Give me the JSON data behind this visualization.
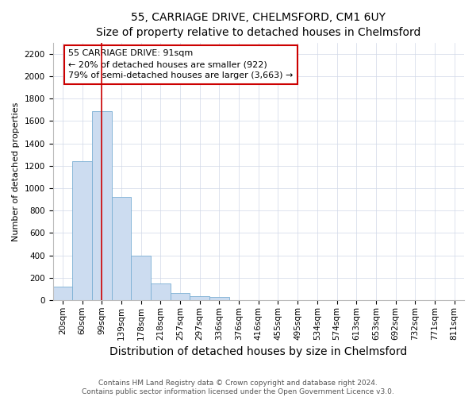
{
  "title": "55, CARRIAGE DRIVE, CHELMSFORD, CM1 6UY",
  "subtitle": "Size of property relative to detached houses in Chelmsford",
  "xlabel": "Distribution of detached houses by size in Chelmsford",
  "ylabel": "Number of detached properties",
  "categories": [
    "20sqm",
    "60sqm",
    "99sqm",
    "139sqm",
    "178sqm",
    "218sqm",
    "257sqm",
    "297sqm",
    "336sqm",
    "376sqm",
    "416sqm",
    "455sqm",
    "495sqm",
    "534sqm",
    "574sqm",
    "613sqm",
    "653sqm",
    "692sqm",
    "732sqm",
    "771sqm",
    "811sqm"
  ],
  "values": [
    120,
    1240,
    1690,
    920,
    400,
    150,
    65,
    35,
    25,
    0,
    0,
    0,
    0,
    0,
    0,
    0,
    0,
    0,
    0,
    0,
    0
  ],
  "bar_color": "#ccdcf0",
  "bar_edge_color": "#7bafd4",
  "vline_x": 2,
  "vline_color": "#cc0000",
  "annotation_text": "55 CARRIAGE DRIVE: 91sqm\n← 20% of detached houses are smaller (922)\n79% of semi-detached houses are larger (3,663) →",
  "annotation_box_color": "#ffffff",
  "annotation_box_edge": "#cc0000",
  "ylim": [
    0,
    2300
  ],
  "yticks": [
    0,
    200,
    400,
    600,
    800,
    1000,
    1200,
    1400,
    1600,
    1800,
    2000,
    2200
  ],
  "footer": "Contains HM Land Registry data © Crown copyright and database right 2024.\nContains public sector information licensed under the Open Government Licence v3.0.",
  "title_fontsize": 10,
  "xlabel_fontsize": 10,
  "ylabel_fontsize": 8,
  "tick_fontsize": 7.5,
  "footer_fontsize": 6.5,
  "annotation_fontsize": 8
}
